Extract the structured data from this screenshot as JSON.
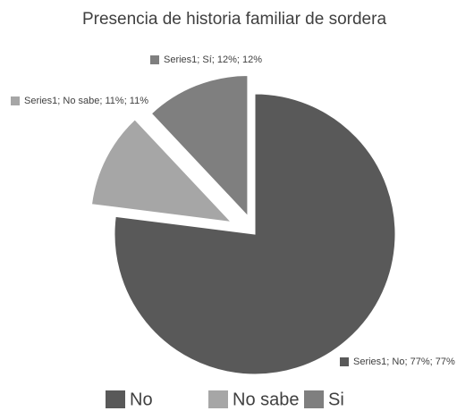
{
  "chart_data": {
    "type": "pie",
    "title": "Presencia de historia familiar de sordera",
    "categories": [
      "No",
      "No sabe",
      "Si"
    ],
    "series": [
      {
        "values": [
          77,
          11,
          12
        ],
        "value_labels": [
          "Series1; No; 77%; 77%",
          "Series1; No sabe; 11%; 11%",
          "Series1; Sí; 12%; 12%"
        ],
        "colors": [
          "#595959",
          "#a6a6a6",
          "#7f7f7f"
        ]
      }
    ],
    "legend": "bottom"
  }
}
